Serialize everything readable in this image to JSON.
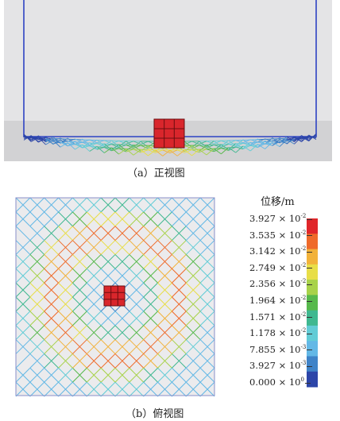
{
  "captions": {
    "front": "（a）正视图",
    "top": "（b）俯视图"
  },
  "legend": {
    "title": "位移/m",
    "labels": [
      {
        "mant": "3.927 × 10",
        "exp": "-2"
      },
      {
        "mant": "3.535 × 10",
        "exp": "-2"
      },
      {
        "mant": "3.142 × 10",
        "exp": "-2"
      },
      {
        "mant": "2.749 × 10",
        "exp": "-2"
      },
      {
        "mant": "2.356 × 10",
        "exp": "-2"
      },
      {
        "mant": "1.964 × 10",
        "exp": "-2"
      },
      {
        "mant": "1.571 × 10",
        "exp": "-2"
      },
      {
        "mant": "1.178 × 10",
        "exp": "-2"
      },
      {
        "mant": "7.855 × 10",
        "exp": "-3"
      },
      {
        "mant": "3.927 × 10",
        "exp": "-3"
      },
      {
        "mant": "0.000 × 10",
        "exp": "0"
      }
    ],
    "colors": [
      "#e0262a",
      "#ef6a2a",
      "#f2b23a",
      "#e8de48",
      "#a8d24a",
      "#57b94c",
      "#3fb890",
      "#62ccd6",
      "#63b8e6",
      "#3f83c8",
      "#2c45a8"
    ]
  }
}
